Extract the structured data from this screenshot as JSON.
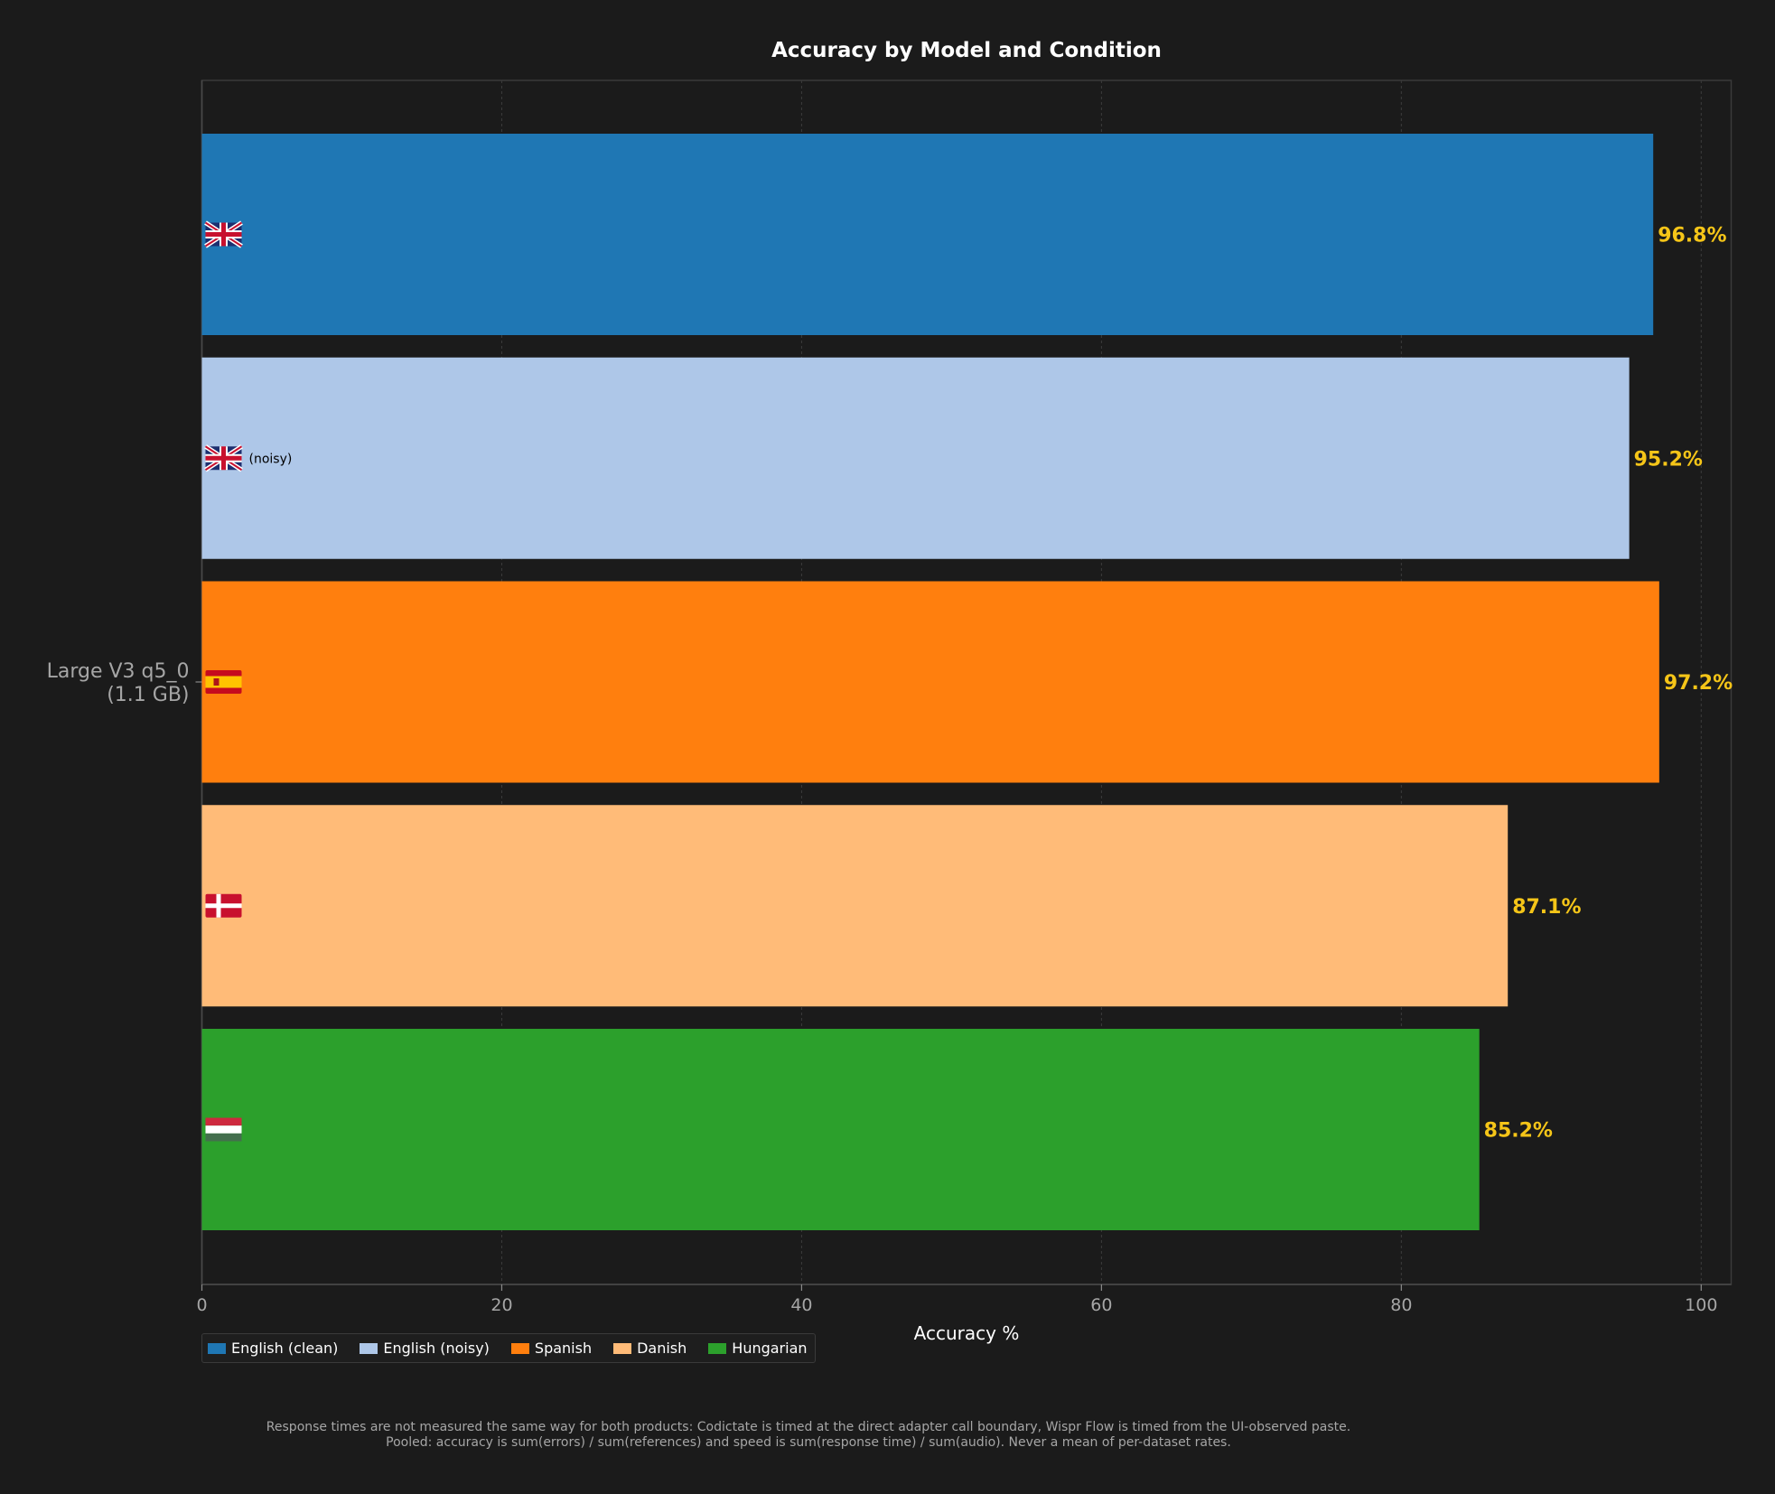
{
  "chart_data": {
    "type": "bar",
    "orientation": "horizontal",
    "title": "Accuracy by Model and Condition",
    "xlabel": "Accuracy %",
    "ylabel": "",
    "xlim": [
      0,
      102
    ],
    "xticks": [
      "0",
      "20",
      "40",
      "60",
      "80",
      "100"
    ],
    "grid": true,
    "legend_position": "bottom-left",
    "categories": [
      [
        "Large V3 q5_0",
        "(1.1 GB)"
      ]
    ],
    "series": [
      {
        "name": "English (clean)",
        "values": [
          96.8
        ],
        "label": "96.8%",
        "color": "#1f77b4",
        "flag": "GB",
        "suffix": ""
      },
      {
        "name": "English (noisy)",
        "values": [
          95.2
        ],
        "label": "95.2%",
        "color": "#aec7e8",
        "flag": "GB",
        "suffix": "(noisy)"
      },
      {
        "name": "Spanish",
        "values": [
          97.2
        ],
        "label": "97.2%",
        "color": "#ff7f0e",
        "flag": "ES",
        "suffix": ""
      },
      {
        "name": "Danish",
        "values": [
          87.1
        ],
        "label": "87.1%",
        "color": "#ffbb78",
        "flag": "DK",
        "suffix": ""
      },
      {
        "name": "Hungarian",
        "values": [
          85.2
        ],
        "label": "85.2%",
        "color": "#2ca02c",
        "flag": "HU",
        "suffix": ""
      }
    ],
    "value_label_color": "#f5c518"
  },
  "footnote": {
    "line1": "Response times are not measured the same way for both products: Codictate is timed at the direct adapter call boundary, Wispr Flow is timed from the UI-observed paste.",
    "line2": "Pooled: accuracy is sum(errors) / sum(references) and speed is sum(response time) / sum(audio). Never a mean of per-dataset rates."
  },
  "colors": {
    "background": "#1b1b1b",
    "axis": "#4a4a4a",
    "grid": "#3c3c3c",
    "tick_text": "#a6a6a6",
    "title_text": "#ffffff"
  }
}
